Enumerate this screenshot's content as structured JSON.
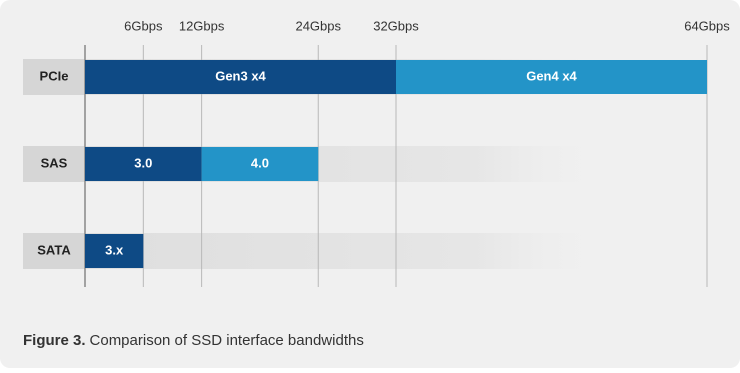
{
  "chart_data": {
    "type": "stacked-barh",
    "categories": [
      "PCIe",
      "SAS",
      "SATA"
    ],
    "series": [
      {
        "color": "#0e4a85",
        "values": [
          32,
          12,
          6
        ],
        "labels": [
          "Gen3 x4",
          "3.0",
          "3.x"
        ]
      },
      {
        "color": "#2394c8",
        "values": [
          32,
          12,
          null
        ],
        "labels": [
          "Gen4 x4",
          "4.0",
          null
        ]
      }
    ],
    "xlim": [
      0,
      64
    ],
    "xticks": [
      {
        "value": 6,
        "label": "6Gbps"
      },
      {
        "value": 12,
        "label": "12Gbps"
      },
      {
        "value": 24,
        "label": "24Gbps"
      },
      {
        "value": 32,
        "label": "32Gbps"
      },
      {
        "value": 64,
        "label": "64Gbps"
      }
    ],
    "grid": true,
    "caption": {
      "label": "Figure 3.",
      "text": "Comparison of SSD interface bandwidths"
    }
  }
}
